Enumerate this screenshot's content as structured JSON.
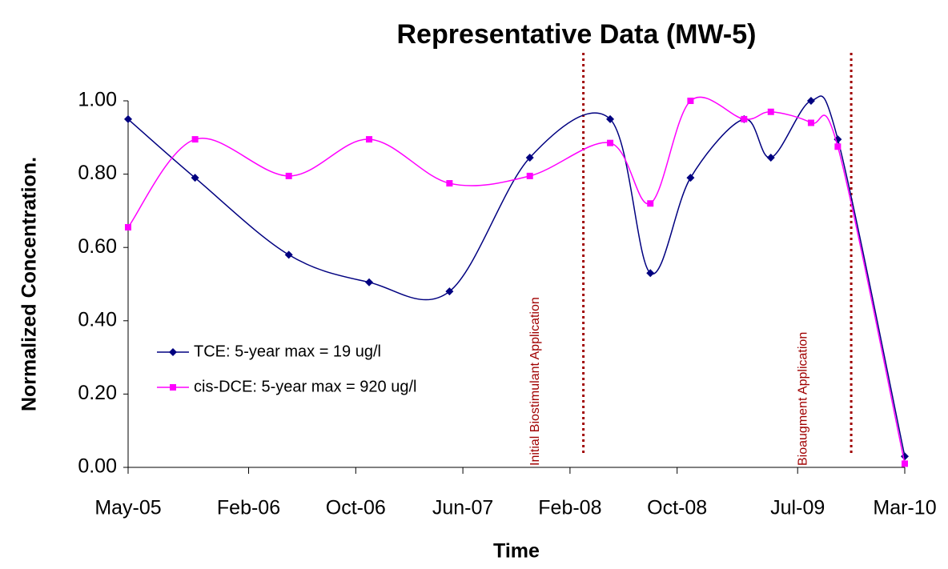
{
  "chart_data": {
    "type": "line",
    "title": "Representative Data (MW-5)",
    "x_label": "Time",
    "y_label": "Normalized Concentration.",
    "x": [
      "2005-05",
      "2005-10",
      "2006-05",
      "2006-11",
      "2007-05",
      "2007-11",
      "2008-05",
      "2008-08",
      "2008-11",
      "2009-03",
      "2009-05",
      "2009-08",
      "2009-10",
      "2010-03"
    ],
    "series": [
      {
        "name": "TCE: 5-year max = 19 ug/l",
        "color": "#000080",
        "marker": "diamond",
        "values": [
          0.95,
          0.79,
          0.58,
          0.505,
          0.48,
          0.845,
          0.95,
          0.53,
          0.79,
          0.95,
          0.845,
          1.0,
          0.895,
          0.03
        ]
      },
      {
        "name": "cis-DCE: 5-year max = 920 ug/l",
        "color": "#ff00ff",
        "marker": "square",
        "values": [
          0.655,
          0.895,
          0.795,
          0.895,
          0.775,
          0.795,
          0.885,
          0.72,
          1.0,
          0.95,
          0.97,
          0.94,
          0.875,
          0.01
        ]
      }
    ],
    "annotations": [
      {
        "x": "2008-03",
        "label": "Initial Biostimulant Application",
        "color": "#a00000"
      },
      {
        "x": "2009-11",
        "label": "Bioaugment Application",
        "color": "#a00000"
      }
    ],
    "xlim": [
      "2005-05",
      "2010-03"
    ],
    "xticks": [
      {
        "value": "2005-05",
        "label": "May-05"
      },
      {
        "value": "2006-02",
        "label": "Feb-06"
      },
      {
        "value": "2006-10",
        "label": "Oct-06"
      },
      {
        "value": "2007-06",
        "label": "Jun-07"
      },
      {
        "value": "2008-02",
        "label": "Feb-08"
      },
      {
        "value": "2008-10",
        "label": "Oct-08"
      },
      {
        "value": "2009-07",
        "label": "Jul-09"
      },
      {
        "value": "2010-03",
        "label": "Mar-10"
      }
    ],
    "ylim": [
      0,
      1
    ],
    "yticks": [
      {
        "value": 0,
        "label": "0.00"
      },
      {
        "value": 0.2,
        "label": "0.20"
      },
      {
        "value": 0.4,
        "label": "0.40"
      },
      {
        "value": 0.6,
        "label": "0.60"
      },
      {
        "value": 0.8,
        "label": "0.80"
      },
      {
        "value": 1,
        "label": "1.00"
      }
    ],
    "grid": false,
    "legend": "left"
  }
}
